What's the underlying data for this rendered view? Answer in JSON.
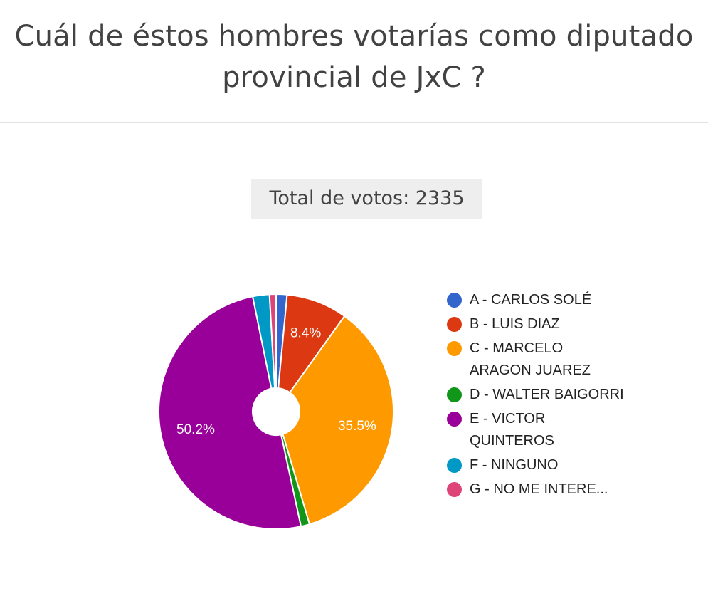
{
  "title_line1": "Cuál de éstos hombres votarías como diputado",
  "title_line2": "provincial de JxC ?",
  "total_label": "Total de votos: 2335",
  "chart_data": {
    "type": "pie",
    "donut": true,
    "total_votes": 2335,
    "legend_position": "right",
    "slices": [
      {
        "label": "A - CARLOS SOLÉ",
        "value": 1.5,
        "color": "#3366cc",
        "shown_label": ""
      },
      {
        "label": "B - LUIS DIAZ",
        "value": 8.4,
        "color": "#dc3912",
        "shown_label": "8.4%"
      },
      {
        "label": "C - MARCELO ARAGON JUAREZ",
        "value": 35.5,
        "color": "#ff9900",
        "shown_label": "35.5%"
      },
      {
        "label": "D - WALTER BAIGORRI",
        "value": 1.2,
        "color": "#109618",
        "shown_label": ""
      },
      {
        "label": "E - VICTOR QUINTEROS",
        "value": 50.2,
        "color": "#990099",
        "shown_label": "50.2%"
      },
      {
        "label": "F - NINGUNO",
        "value": 2.3,
        "color": "#0099c6",
        "shown_label": ""
      },
      {
        "label": "G - NO ME INTERE...",
        "value": 0.9,
        "color": "#dd4477",
        "shown_label": ""
      }
    ]
  }
}
